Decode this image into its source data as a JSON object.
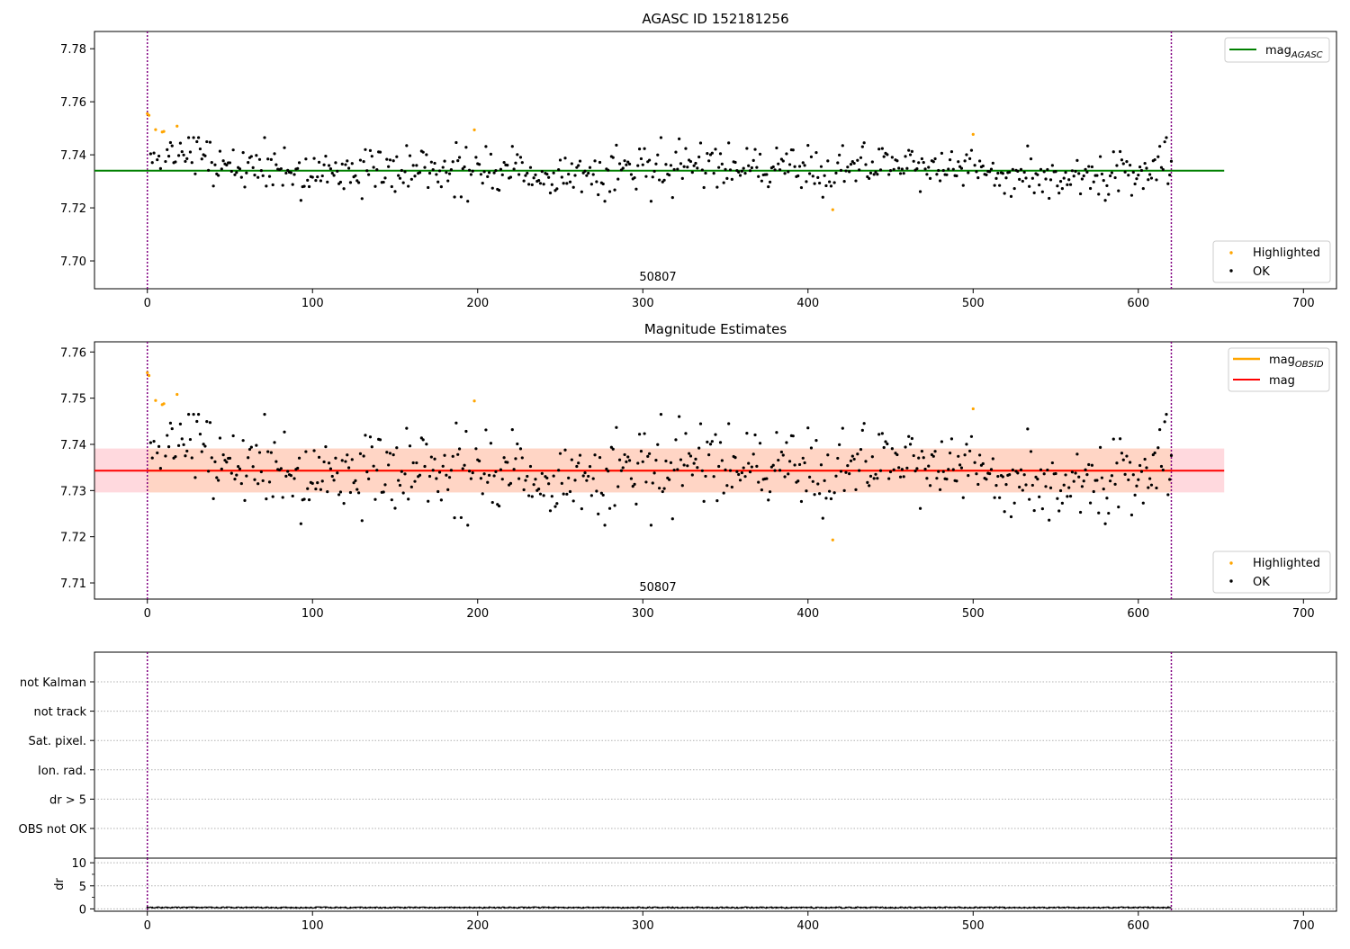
{
  "chart_data": [
    {
      "type": "scatter",
      "title": "AGASC ID 152181256",
      "xlim": [
        -32,
        720
      ],
      "ylim": [
        7.6895,
        7.7865
      ],
      "xticks": [
        0,
        100,
        200,
        300,
        400,
        500,
        600,
        700
      ],
      "yticks": [
        7.7,
        7.72,
        7.74,
        7.76,
        7.78
      ],
      "ytick_labels": [
        "7.70",
        "7.72",
        "7.74",
        "7.76",
        "7.78"
      ],
      "reference_line": {
        "name_base": "mag",
        "name_sub": "AGASC",
        "y": 7.734,
        "x_range": [
          -32,
          652
        ],
        "color": "#008000"
      },
      "vlines": [
        0,
        620
      ],
      "obsid_label": "50807",
      "series": [
        {
          "name": "Highlighted",
          "color": "#ffa500"
        },
        {
          "name": "OK",
          "color": "#000000"
        }
      ],
      "legend_placement": [
        "top-right",
        "bottom-right"
      ],
      "grid": false
    },
    {
      "type": "scatter",
      "title": "Magnitude Estimates",
      "xlim": [
        -32,
        720
      ],
      "ylim": [
        7.7065,
        7.7622
      ],
      "xticks": [
        0,
        100,
        200,
        300,
        400,
        500,
        600,
        700
      ],
      "yticks": [
        7.71,
        7.72,
        7.73,
        7.74,
        7.75,
        7.76
      ],
      "ytick_labels": [
        "7.71",
        "7.72",
        "7.73",
        "7.74",
        "7.75",
        "7.76"
      ],
      "lines": [
        {
          "name_base": "mag",
          "name_sub": "OBSID",
          "y": 7.7343,
          "x_range": [
            0,
            620
          ],
          "color": "#ffa500"
        },
        {
          "name_base": "mag",
          "name_sub": "",
          "y": 7.7343,
          "x_range": [
            -32,
            652
          ],
          "color": "#ff0000"
        }
      ],
      "bands": [
        {
          "y_range": [
            7.7296,
            7.7391
          ],
          "x_range": [
            -32,
            652
          ],
          "color": "#ffc0c8"
        },
        {
          "y_range": [
            7.7296,
            7.7391
          ],
          "x_range": [
            0,
            620
          ],
          "color": "#ffd2b4"
        }
      ],
      "vlines": [
        0,
        620
      ],
      "obsid_label": "50807",
      "series": [
        {
          "name": "Highlighted",
          "color": "#ffa500"
        },
        {
          "name": "OK",
          "color": "#000000"
        }
      ],
      "legend_placement": [
        "top-right",
        "bottom-right"
      ],
      "grid": false
    },
    {
      "type": "flags",
      "xlim": [
        -32,
        720
      ],
      "categories": [
        "not Kalman",
        "not track",
        "Sat. pixel.",
        "Ion. rad.",
        "dr > 5",
        "OBS not OK"
      ],
      "vlines": [
        0,
        620
      ],
      "grid": true
    },
    {
      "type": "line",
      "ylabel": "dr",
      "xlim": [
        -32,
        720
      ],
      "ylim": [
        -0.5,
        11
      ],
      "xticks": [
        0,
        100,
        200,
        300,
        400,
        500,
        600,
        700
      ],
      "yticks": [
        0,
        5,
        10
      ],
      "vlines": [
        0,
        620
      ],
      "n_points": 621,
      "dr_level": 0.3,
      "grid": true
    }
  ],
  "data_points": {
    "n_points": 621,
    "center": 7.7343,
    "highlighted": [
      [
        0,
        7.7555
      ],
      [
        1,
        7.7549
      ],
      [
        5,
        7.7495
      ],
      [
        9,
        7.7486
      ],
      [
        10,
        7.7488
      ],
      [
        18,
        7.7508
      ],
      [
        198,
        7.7494
      ],
      [
        415,
        7.7193
      ],
      [
        500,
        7.7477
      ]
    ]
  }
}
